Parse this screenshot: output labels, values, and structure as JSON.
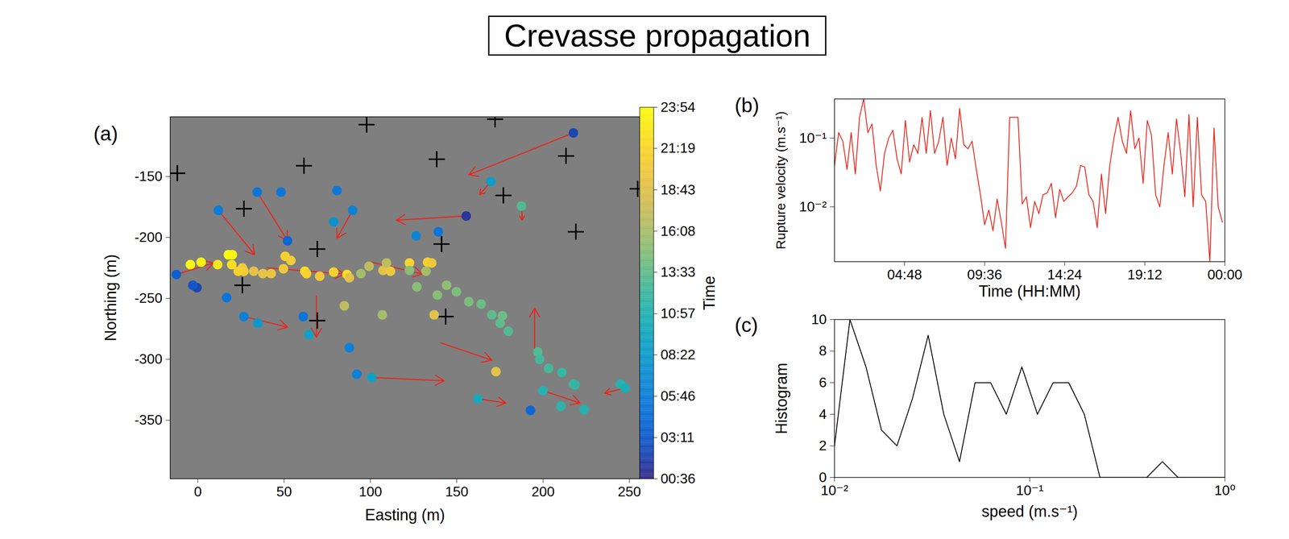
{
  "title": "Crevasse propagation",
  "chart_data": [
    {
      "type": "scatter",
      "panel_label": "(a)",
      "xlabel": "Easting (m)",
      "ylabel": "Northing (m)",
      "xlim": [
        -16,
        256
      ],
      "ylim": [
        -398,
        -101
      ],
      "xticks": [
        0,
        50,
        100,
        150,
        200,
        250
      ],
      "yticks": [
        -350,
        -300,
        -250,
        -200,
        -150
      ],
      "points": {
        "x": [
          217.6,
          155.5,
          169.8,
          187.5,
          34.4,
          48.2,
          11.9,
          52.0,
          80.6,
          78.7,
          89.7,
          126.4,
          139.3,
          -12.4,
          -0.5,
          -2.9,
          16.7,
          26.7,
          34.8,
          61.1,
          64.4,
          87.8,
          92.1,
          100.7,
          162.2,
          192.7,
          199.9,
          -4.3,
          1.9,
          17.7,
          20.0,
          19.6,
          11.5,
          25.8,
          26.7,
          23.4,
          32.4,
          37.7,
          42.5,
          49.6,
          50.6,
          53.9,
          62.0,
          63.0,
          70.6,
          78.7,
          86.4,
          87.8,
          94.5,
          99.2,
          107.3,
          109.3,
          111.6,
          122.6,
          122.6,
          133.1,
          135.5,
          132.2,
          126.9,
          138.8,
          144.1,
          149.8,
          157.0,
          164.1,
          170.3,
          175.1,
          179.9,
          176.5,
          197.0,
          198.0,
          203.2,
          210.9,
          217.6,
          218.5,
          210.4,
          223.8,
          244.8,
          247.6,
          84.9,
          106.9,
          136.9,
          172.7
        ],
        "y": [
          -114.2,
          -182.4,
          -154.1,
          -174.3,
          -162.8,
          -162.8,
          -177.7,
          -202.7,
          -161.5,
          -187.2,
          -177.7,
          -198.6,
          -195.3,
          -230.4,
          -241.2,
          -239.2,
          -249.3,
          -264.9,
          -270.3,
          -264.9,
          -279.7,
          -290.5,
          -312.2,
          -314.9,
          -332.4,
          -341.9,
          -325.7,
          -222.3,
          -220.3,
          -214.2,
          -214.2,
          -222.3,
          -222.3,
          -225.0,
          -227.7,
          -227.7,
          -227.7,
          -229.7,
          -229.7,
          -225.7,
          -215.5,
          -218.9,
          -227.7,
          -229.7,
          -231.8,
          -228.4,
          -230.4,
          -233.1,
          -229.7,
          -223.6,
          -227.0,
          -220.9,
          -227.7,
          -220.9,
          -227.0,
          -220.3,
          -220.9,
          -227.7,
          -240.5,
          -247.3,
          -239.2,
          -244.6,
          -252.7,
          -254.7,
          -263.5,
          -270.3,
          -277.0,
          -264.2,
          -293.9,
          -300.0,
          -307.4,
          -310.8,
          -320.3,
          -320.9,
          -338.5,
          -341.2,
          -320.3,
          -323.6,
          -256.1,
          -263.5,
          -263.5,
          -310.1
        ],
        "time": [
          2.0,
          1.2,
          8.5,
          13.0,
          5.0,
          5.2,
          5.5,
          4.0,
          5.3,
          7.5,
          6.0,
          6.2,
          5.0,
          3.5,
          2.0,
          3.0,
          5.0,
          6.0,
          8.0,
          5.0,
          9.0,
          6.0,
          6.0,
          9.0,
          10.0,
          4.0,
          11.0,
          23.5,
          23.3,
          23.8,
          23.6,
          22.0,
          22.5,
          20.0,
          20.5,
          21.0,
          19.0,
          19.2,
          19.5,
          20.0,
          21.0,
          20.5,
          22.0,
          21.0,
          20.0,
          21.0,
          22.0,
          19.0,
          16.0,
          17.0,
          19.0,
          17.0,
          20.0,
          21.0,
          15.0,
          21.0,
          20.0,
          16.0,
          15.0,
          15.0,
          15.2,
          14.5,
          14.5,
          14.0,
          13.5,
          13.5,
          13.0,
          14.0,
          13.0,
          12.5,
          12.5,
          12.0,
          12.0,
          11.8,
          11.5,
          11.0,
          11.0,
          10.5,
          17.0,
          16.0,
          19.0,
          19.0
        ]
      },
      "crosses": {
        "marker": "plus",
        "color": "#000000",
        "x": [
          -11.9,
          26.7,
          61.5,
          97.8,
          172.2,
          138.4,
          213.3,
          177.0,
          219.0,
          254.8,
          141.2,
          69.2,
          25.8,
          69.2,
          143.6
        ],
        "y": [
          -147.3,
          -176.4,
          -141.2,
          -107.4,
          -103.0,
          -135.8,
          -133.1,
          -165.5,
          -195.3,
          -160.1,
          -205.4,
          -209.5,
          -239.2,
          -268.2,
          -264.9
        ]
      },
      "arrows": {
        "color": "#e8261c",
        "x1": [
          217.6,
          169.8,
          155.5,
          187.5,
          34.4,
          11.9,
          89.7,
          -12.4,
          26.7,
          100.7,
          162.2,
          199.9,
          140.7,
          247.6,
          68.7,
          195.1,
          40.0,
          100.0
        ],
        "y1": [
          -114.2,
          -154.1,
          -182.4,
          -174.3,
          -162.8,
          -177.7,
          -177.7,
          -230.4,
          -264.9,
          -314.9,
          -332.4,
          -325.7,
          -286.5,
          -323.6,
          -248.0,
          -293.9,
          -225.0,
          -220.0
        ],
        "x2": [
          157.0,
          163.2,
          115.0,
          188.0,
          52.0,
          32.9,
          80.6,
          9.1,
          52.0,
          142.7,
          178.4,
          221.4,
          170.3,
          235.7,
          68.7,
          195.1,
          85.0,
          130.0
        ],
        "y2": [
          -148.6,
          -164.9,
          -185.8,
          -185.8,
          -202.7,
          -214.2,
          -200.7,
          -220.9,
          -273.6,
          -317.6,
          -335.8,
          -335.8,
          -300.7,
          -327.7,
          -281.8,
          -258.1,
          -230.0,
          -230.0
        ]
      },
      "colorbar": {
        "label": "Time",
        "range": [
          0.6,
          23.9
        ],
        "ticks": [
          {
            "value": 0.6,
            "label": "00:36"
          },
          {
            "value": 3.18,
            "label": "03:11"
          },
          {
            "value": 5.77,
            "label": "05:46"
          },
          {
            "value": 8.37,
            "label": "08:22"
          },
          {
            "value": 10.95,
            "label": "10:57"
          },
          {
            "value": 13.55,
            "label": "13:33"
          },
          {
            "value": 16.13,
            "label": "16:08"
          },
          {
            "value": 18.72,
            "label": "18:43"
          },
          {
            "value": 21.32,
            "label": "21:19"
          },
          {
            "value": 23.9,
            "label": "23:54"
          }
        ]
      }
    },
    {
      "type": "line",
      "panel_label": "(b)",
      "xlabel": "Time (HH:MM)",
      "ylabel": "Rupture velocity (m.s⁻¹)",
      "log": "y",
      "color": "#e8261c",
      "xlim": [
        0.6,
        24
      ],
      "ylim": [
        0.0016,
        0.37
      ],
      "xticks": [
        {
          "value": 4.8,
          "label": "04:48"
        },
        {
          "value": 9.6,
          "label": "09:36"
        },
        {
          "value": 14.4,
          "label": "14:24"
        },
        {
          "value": 19.2,
          "label": "19:12"
        },
        {
          "value": 24,
          "label": "00:00"
        }
      ],
      "yticks": [
        {
          "value": 0.01,
          "label": "10⁻²"
        },
        {
          "value": 0.1,
          "label": "10⁻¹"
        }
      ],
      "x": [
        0.6,
        0.85,
        1.1,
        1.35,
        1.6,
        1.85,
        2.1,
        2.35,
        2.6,
        2.85,
        3.1,
        3.35,
        3.6,
        3.85,
        4.1,
        4.35,
        4.6,
        4.85,
        5.1,
        5.35,
        5.6,
        5.85,
        6.1,
        6.35,
        6.6,
        6.85,
        7.1,
        7.35,
        7.6,
        7.85,
        8.1,
        8.35,
        8.6,
        8.85,
        9.1,
        9.35,
        9.6,
        9.85,
        10.1,
        10.35,
        10.6,
        10.85,
        11.1,
        11.35,
        11.6,
        11.85,
        12.1,
        12.35,
        12.6,
        12.85,
        13.1,
        13.35,
        13.6,
        13.85,
        14.1,
        14.35,
        14.6,
        14.85,
        15.1,
        15.35,
        15.6,
        15.85,
        16.1,
        16.35,
        16.6,
        16.85,
        17.1,
        17.35,
        17.6,
        17.85,
        18.1,
        18.35,
        18.6,
        18.85,
        19.1,
        19.35,
        19.6,
        19.85,
        20.1,
        20.35,
        20.6,
        20.85,
        21.1,
        21.35,
        21.6,
        21.85,
        22.1,
        22.35,
        22.6,
        22.85,
        23.1,
        23.35,
        23.6,
        23.85
      ],
      "values": [
        0.04,
        0.12,
        0.09,
        0.035,
        0.12,
        0.03,
        0.2,
        0.37,
        0.12,
        0.16,
        0.04,
        0.017,
        0.06,
        0.1,
        0.13,
        0.05,
        0.03,
        0.18,
        0.045,
        0.08,
        0.06,
        0.2,
        0.06,
        0.25,
        0.06,
        0.09,
        0.2,
        0.04,
        0.1,
        0.05,
        0.27,
        0.08,
        0.07,
        0.09,
        0.035,
        0.015,
        0.0055,
        0.009,
        0.0045,
        0.013,
        0.006,
        0.0025,
        0.2,
        0.2,
        0.2,
        0.011,
        0.014,
        0.005,
        0.012,
        0.008,
        0.015,
        0.016,
        0.022,
        0.007,
        0.018,
        0.012,
        0.014,
        0.016,
        0.02,
        0.04,
        0.038,
        0.015,
        0.012,
        0.005,
        0.03,
        0.008,
        0.04,
        0.1,
        0.2,
        0.09,
        0.06,
        0.25,
        0.07,
        0.1,
        0.022,
        0.18,
        0.11,
        0.015,
        0.01,
        0.04,
        0.12,
        0.03,
        0.19,
        0.06,
        0.014,
        0.22,
        0.01,
        0.2,
        0.015,
        0.012,
        0.0016,
        0.14,
        0.01,
        0.006
      ]
    },
    {
      "type": "line",
      "panel_label": "(c)",
      "xlabel": "speed (m.s⁻¹)",
      "ylabel": "Histogram",
      "log": "x",
      "color": "#000000",
      "xlim": [
        0.01,
        1
      ],
      "ylim": [
        0,
        10
      ],
      "xticks": [
        {
          "value": 0.01,
          "label": "10⁻²"
        },
        {
          "value": 0.1,
          "label": "10⁻¹"
        },
        {
          "value": 1,
          "label": "10⁰"
        }
      ],
      "yticks": [
        0,
        2,
        4,
        6,
        8,
        10
      ],
      "x": [
        0.01,
        0.012,
        0.0145,
        0.0174,
        0.0209,
        0.0251,
        0.0302,
        0.0363,
        0.0437,
        0.0525,
        0.0631,
        0.0759,
        0.0912,
        0.1096,
        0.1318,
        0.1585,
        0.1905,
        0.2291,
        0.2754,
        0.3311,
        0.3981,
        0.4786,
        0.5754,
        0.6918,
        0.8318,
        1.0
      ],
      "values": [
        2,
        10,
        7,
        3,
        2,
        5,
        9,
        4,
        1,
        6,
        6,
        4,
        7,
        4,
        6,
        6,
        4,
        0,
        0,
        0,
        0,
        1,
        0,
        0,
        0,
        0
      ]
    }
  ]
}
